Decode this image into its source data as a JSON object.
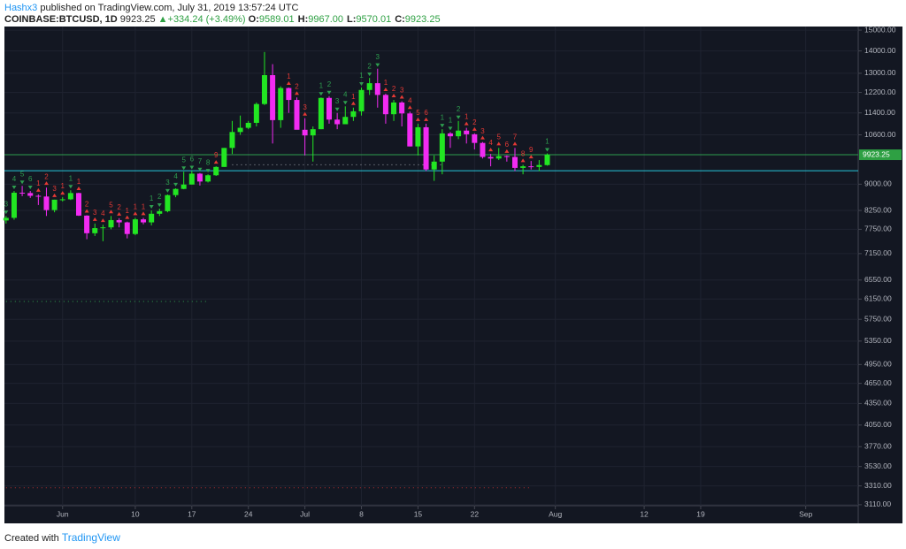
{
  "header": {
    "author": "Hashx3",
    "published": " published on TradingView.com, July 31, 2019 13:57:24 UTC",
    "symbol": "COINBASE:BTCUSD, 1D",
    "price": "9923.25",
    "arrow": "▲",
    "change": "+334.24 (+3.49%)",
    "ohlc": [
      {
        "k": "O:",
        "v": "9589.01"
      },
      {
        "k": "H:",
        "v": "9967.00"
      },
      {
        "k": "L:",
        "v": "9570.01"
      },
      {
        "k": "C:",
        "v": "9923.25"
      }
    ]
  },
  "footer": {
    "text": "Created with",
    "brand": "TradingView"
  },
  "chart_data": {
    "type": "candlestick",
    "log_scale": true,
    "grid": true,
    "up_color": "#22e622",
    "down_color": "#f22bf2",
    "buy_color": "#2e9e4f",
    "sell_color": "#e53935",
    "xlim": [
      144.8,
      250.5
    ],
    "ylim": [
      3100,
      15180
    ],
    "xticks": [
      {
        "value": 152,
        "label": "Jun"
      },
      {
        "value": 161,
        "label": "10"
      },
      {
        "value": 168,
        "label": "17"
      },
      {
        "value": 175,
        "label": "24"
      },
      {
        "value": 182,
        "label": "Jul"
      },
      {
        "value": 189,
        "label": "8"
      },
      {
        "value": 196,
        "label": "15"
      },
      {
        "value": 203,
        "label": "22"
      },
      {
        "value": 213,
        "label": "Aug"
      },
      {
        "value": 224,
        "label": "12"
      },
      {
        "value": 231,
        "label": "19"
      },
      {
        "value": 244,
        "label": "Sep"
      }
    ],
    "yticks": [
      {
        "value": 15000,
        "label": "15000.00"
      },
      {
        "value": 14000,
        "label": "14000.00"
      },
      {
        "value": 13000,
        "label": "13000.00"
      },
      {
        "value": 12200,
        "label": "12200.00"
      },
      {
        "value": 11400,
        "label": "11400.00"
      },
      {
        "value": 10600,
        "label": "10600.00"
      },
      {
        "value": 9000,
        "label": "9000.00"
      },
      {
        "value": 8250,
        "label": "8250.00"
      },
      {
        "value": 7750,
        "label": "7750.00"
      },
      {
        "value": 7150,
        "label": "7150.00"
      },
      {
        "value": 6550,
        "label": "6550.00"
      },
      {
        "value": 6150,
        "label": "6150.00"
      },
      {
        "value": 5750,
        "label": "5750.00"
      },
      {
        "value": 5350,
        "label": "5350.00"
      },
      {
        "value": 4950,
        "label": "4950.00"
      },
      {
        "value": 4650,
        "label": "4650.00"
      },
      {
        "value": 4350,
        "label": "4350.00"
      },
      {
        "value": 4050,
        "label": "4050.00"
      },
      {
        "value": 3770,
        "label": "3770.00"
      },
      {
        "value": 3530,
        "label": "3530.00"
      },
      {
        "value": 3310,
        "label": "3310.00"
      },
      {
        "value": 3110,
        "label": "3110.00"
      }
    ],
    "x": [
      145,
      146,
      147,
      148,
      149,
      150,
      151,
      152,
      153,
      154,
      155,
      156,
      157,
      158,
      159,
      160,
      161,
      162,
      163,
      164,
      165,
      166,
      167,
      168,
      169,
      170,
      171,
      172,
      173,
      174,
      175,
      176,
      177,
      178,
      179,
      180,
      181,
      182,
      183,
      184,
      185,
      186,
      187,
      188,
      189,
      190,
      191,
      192,
      193,
      194,
      195,
      196,
      197,
      198,
      199,
      200,
      201,
      202,
      203,
      204,
      205,
      206,
      207,
      208,
      209,
      210,
      211,
      212
    ],
    "open": [
      7980,
      8050,
      8750,
      8740,
      8660,
      8640,
      8260,
      8550,
      8560,
      8740,
      8110,
      7650,
      7780,
      7800,
      7990,
      7930,
      7630,
      8010,
      7930,
      8160,
      8230,
      8680,
      8860,
      8990,
      9320,
      9080,
      9270,
      9530,
      10150,
      10700,
      10850,
      11030,
      11740,
      12920,
      11130,
      12380,
      11900,
      10780,
      10580,
      10800,
      11980,
      11150,
      10980,
      11250,
      11460,
      12300,
      12580,
      12100,
      11350,
      11800,
      11380,
      10200,
      10870,
      9450,
      9700,
      10650,
      10550,
      10750,
      10620,
      10320,
      9850,
      9800,
      9880,
      9850,
      9500,
      9550,
      9530,
      9589.01
    ],
    "high": [
      8100,
      8800,
      8950,
      8800,
      8700,
      8900,
      8550,
      8620,
      8820,
      8750,
      8120,
      7900,
      7870,
      8100,
      8040,
      7950,
      8050,
      8050,
      8250,
      8300,
      8700,
      8880,
      9380,
      9400,
      9340,
      9300,
      9550,
      10150,
      11100,
      11300,
      11100,
      11800,
      13950,
      13400,
      12450,
      12400,
      12000,
      11200,
      10900,
      12000,
      12050,
      11400,
      11650,
      11600,
      12400,
      12800,
      13200,
      12150,
      11900,
      11850,
      11450,
      11000,
      11000,
      9900,
      10800,
      10700,
      11100,
      10850,
      10650,
      10350,
      9950,
      10150,
      9900,
      10150,
      9600,
      9720,
      9750,
      9967
    ],
    "low": [
      7900,
      8000,
      8650,
      8600,
      8400,
      8100,
      8200,
      8500,
      8540,
      8100,
      7500,
      7580,
      7450,
      7750,
      7800,
      7520,
      7600,
      7880,
      7850,
      8100,
      8200,
      8620,
      8850,
      8990,
      8960,
      9050,
      9250,
      9530,
      9950,
      10600,
      10800,
      10900,
      11700,
      10300,
      10850,
      11400,
      10800,
      9900,
      9700,
      10800,
      11000,
      10800,
      10980,
      11100,
      11300,
      12100,
      11600,
      11000,
      11100,
      10900,
      10200,
      9900,
      9400,
      9100,
      9300,
      10150,
      10450,
      10300,
      10100,
      9800,
      9550,
      9750,
      9700,
      9400,
      9300,
      9450,
      9400,
      9570.01
    ],
    "close": [
      8050,
      8750,
      8740,
      8660,
      8640,
      8260,
      8550,
      8560,
      8740,
      8110,
      7650,
      7780,
      7800,
      7990,
      7930,
      7630,
      8010,
      7930,
      8160,
      8230,
      8680,
      8860,
      8990,
      9320,
      9080,
      9270,
      9530,
      10150,
      10700,
      10850,
      11030,
      11740,
      12920,
      11130,
      12380,
      11900,
      10780,
      10580,
      10800,
      11980,
      11150,
      10980,
      11250,
      11460,
      12300,
      12580,
      12100,
      11350,
      11800,
      11380,
      10200,
      10870,
      9450,
      9700,
      10650,
      10550,
      10750,
      10620,
      10320,
      9850,
      9800,
      9880,
      9850,
      9500,
      9550,
      9530,
      9590,
      9923.25
    ],
    "buy_setup": [
      3,
      4,
      5,
      6,
      null,
      null,
      null,
      null,
      1,
      null,
      null,
      null,
      null,
      null,
      null,
      null,
      null,
      null,
      1,
      2,
      3,
      4,
      5,
      6,
      7,
      8,
      null,
      null,
      null,
      null,
      null,
      null,
      null,
      null,
      null,
      null,
      null,
      null,
      null,
      1,
      2,
      3,
      4,
      null,
      1,
      2,
      3,
      null,
      null,
      null,
      null,
      null,
      null,
      null,
      1,
      1,
      2,
      null,
      null,
      null,
      null,
      null,
      null,
      null,
      null,
      null,
      null,
      1
    ],
    "sell_setup": [
      null,
      null,
      null,
      null,
      1,
      2,
      3,
      1,
      null,
      1,
      2,
      3,
      4,
      5,
      2,
      1,
      1,
      1,
      null,
      null,
      null,
      null,
      null,
      null,
      null,
      null,
      9,
      null,
      null,
      null,
      null,
      null,
      null,
      null,
      null,
      1,
      2,
      3,
      null,
      null,
      null,
      null,
      null,
      1,
      null,
      null,
      null,
      1,
      2,
      3,
      4,
      5,
      6,
      null,
      null,
      null,
      null,
      1,
      2,
      3,
      4,
      5,
      6,
      7,
      8,
      9,
      null,
      null
    ],
    "hlines": [
      {
        "value": 9923.25,
        "color": "#2e9e4f"
      },
      {
        "value": 9410,
        "color": "#26c6da"
      }
    ],
    "dotted_levels": [
      {
        "value": 6100,
        "from": 145,
        "to": 170,
        "color": "#2e9e4f"
      },
      {
        "value": 9600,
        "from": 173,
        "to": 199,
        "color": "#9aa0a6"
      },
      {
        "value": 3290,
        "from": 145,
        "to": 210,
        "color": "#b03030"
      }
    ]
  }
}
